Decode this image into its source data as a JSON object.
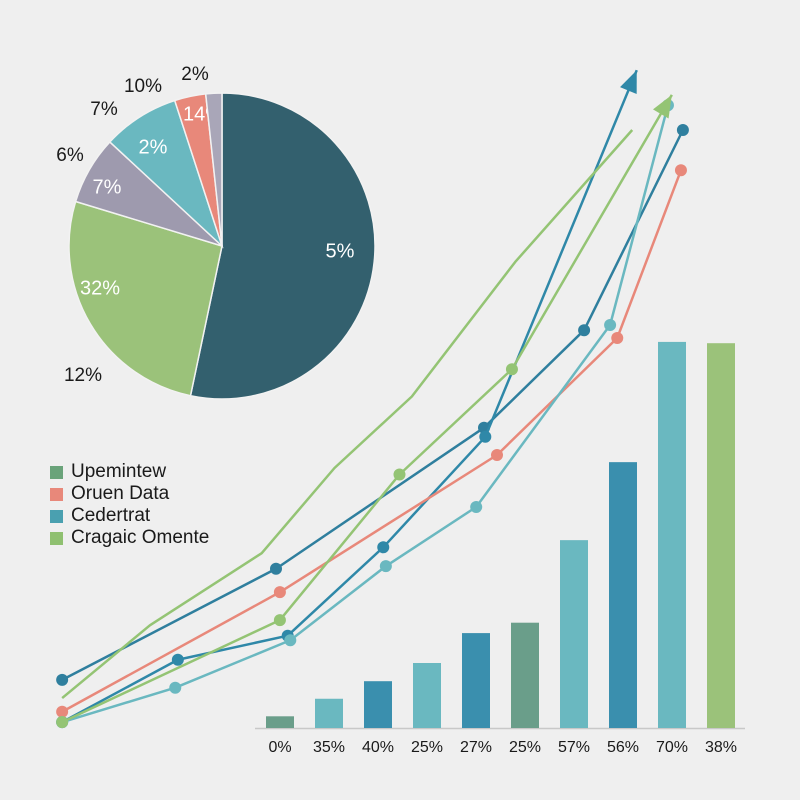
{
  "chart_data": [
    {
      "type": "pie",
      "slices": [
        {
          "percent": 53.3,
          "label": "5%",
          "color": "#33606e"
        },
        {
          "percent": 26.4,
          "label": "32%",
          "color": "#9bc27a"
        },
        {
          "percent": 7.2,
          "label": "7%",
          "color": "#9e9aae"
        },
        {
          "percent": 8.1,
          "label": "2%",
          "color": "#6ab8c0"
        },
        {
          "percent": 3.3,
          "label": "14%",
          "color": "#e8887a"
        },
        {
          "percent": 1.7,
          "label": "",
          "color": "#a9a6b8"
        }
      ],
      "outer_labels": [
        "2%",
        "10%",
        "7%",
        "6%",
        "12%"
      ]
    },
    {
      "type": "line",
      "grid": false,
      "series": [
        {
          "color": "#2f7f9e",
          "arrow": false,
          "markers": true,
          "points": [
            [
              1.1,
              7.4
            ],
            [
              34,
              24.5
            ],
            [
              66,
              46.2
            ],
            [
              81.4,
              61.2
            ],
            [
              96.6,
              92
            ]
          ]
        },
        {
          "color": "#2f88a8",
          "arrow": true,
          "markers": true,
          "points": [
            [
              1.1,
              0.9
            ],
            [
              18.9,
              10.5
            ],
            [
              35.8,
              14.2
            ],
            [
              50.5,
              27.8
            ],
            [
              66.2,
              44.8
            ],
            [
              89.5,
              101.2
            ]
          ]
        },
        {
          "color": "#e8887a",
          "arrow": false,
          "markers": true,
          "points": [
            [
              1.1,
              2.5
            ],
            [
              34.6,
              20.9
            ],
            [
              68,
              42
            ],
            [
              86.5,
              60
            ],
            [
              96.3,
              85.8
            ]
          ]
        },
        {
          "color": "#6ab8c0",
          "arrow": false,
          "markers": true,
          "points": [
            [
              1.1,
              0.9
            ],
            [
              18.5,
              6.2
            ],
            [
              36.2,
              13.5
            ],
            [
              50.9,
              24.9
            ],
            [
              64.8,
              34
            ],
            [
              85.4,
              62
            ],
            [
              94.3,
              95.8
            ]
          ]
        },
        {
          "color": "#94c474",
          "arrow": true,
          "markers": true,
          "points": [
            [
              1.1,
              0.9
            ],
            [
              34.6,
              16.6
            ],
            [
              53,
              39
            ],
            [
              70.3,
              55.2
            ],
            [
              94.9,
              97.4
            ]
          ]
        },
        {
          "color": "#94c474",
          "arrow": false,
          "markers": false,
          "points": [
            [
              1.1,
              4.6
            ],
            [
              14.6,
              15.8
            ],
            [
              31.8,
              26.9
            ],
            [
              43,
              40
            ],
            [
              54.9,
              51
            ],
            [
              70.8,
              71.7
            ],
            [
              88.8,
              92
            ]
          ]
        }
      ]
    },
    {
      "type": "bar",
      "categories": [
        "0%",
        "35%",
        "40%",
        "25%",
        "27%",
        "25%",
        "57%",
        "56%",
        "70%",
        "38%"
      ],
      "values": [
        1.8,
        4.5,
        7.2,
        10,
        14.6,
        16.2,
        28.9,
        40.9,
        59.4,
        59.2
      ],
      "colors": [
        "#6a9e8a",
        "#6ab8c0",
        "#3a8fae",
        "#6ab8c0",
        "#3a8fae",
        "#6a9e8a",
        "#6ab8c0",
        "#3a8fae",
        "#6ab8c0",
        "#9bc27a"
      ]
    }
  ],
  "legend": [
    {
      "label": "Upemintew",
      "color": "#6aa37a"
    },
    {
      "label": "Oruen Data",
      "color": "#e8887a"
    },
    {
      "label": "Cedertrat",
      "color": "#4aa0b0"
    },
    {
      "label": "Cragaic Omente",
      "color": "#8fc070"
    }
  ]
}
